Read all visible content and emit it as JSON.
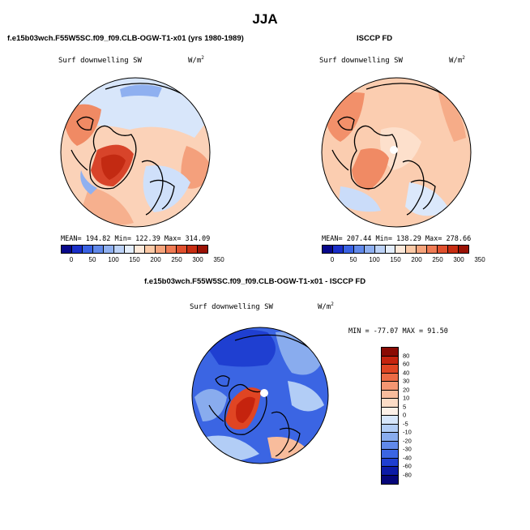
{
  "season": "JJA",
  "left_panel": {
    "case_title": "f.e15b03wch.F55W5SC.f09_f09.CLB-OGW-T1-x01 (yrs 1980-1989)",
    "variable": "Surf downwelling SW",
    "units": "W/m",
    "units_exp": "2",
    "stats": "MEAN= 194.82  Min= 122.39  Max= 314.09"
  },
  "right_panel": {
    "obs_title": "ISCCP FD",
    "variable": "Surf downwelling SW",
    "units": "W/m",
    "units_exp": "2",
    "stats": "MEAN= 207.44  Min= 138.29  Max= 278.66"
  },
  "abs_colorbar": {
    "labels": [
      "0",
      "50",
      "100",
      "150",
      "200",
      "250",
      "300",
      "350"
    ],
    "colors": [
      "#08088a",
      "#1a2fc9",
      "#3a62e3",
      "#6189ea",
      "#8fb0f0",
      "#bcd2f7",
      "#e4eefc",
      "#fde9da",
      "#fbc9a6",
      "#f6a47c",
      "#ef7b54",
      "#e0502e",
      "#c72d12",
      "#9a1205"
    ]
  },
  "diff_panel": {
    "title": "f.e15b03wch.F55W5SC.f09_f09.CLB-OGW-T1-x01 - ISCCP FD",
    "variable": "Surf downwelling SW",
    "units": "W/m",
    "units_exp": "2",
    "stats": "MIN = -77.07  MAX =  91.50",
    "colorbar_labels": [
      "80",
      "60",
      "40",
      "30",
      "20",
      "10",
      "5",
      "0",
      "-5",
      "-10",
      "-20",
      "-30",
      "-40",
      "-60",
      "-80"
    ],
    "colorbar_colors": [
      "#8a0a03",
      "#c5230e",
      "#e04523",
      "#ec6b45",
      "#f49672",
      "#f8bc9c",
      "#fcdcc6",
      "#fdf1e8",
      "#d6e6fb",
      "#b2cdf6",
      "#89acee",
      "#6189ea",
      "#3b65e3",
      "#1f3fd1",
      "#0c1ba6",
      "#06067a"
    ]
  }
}
